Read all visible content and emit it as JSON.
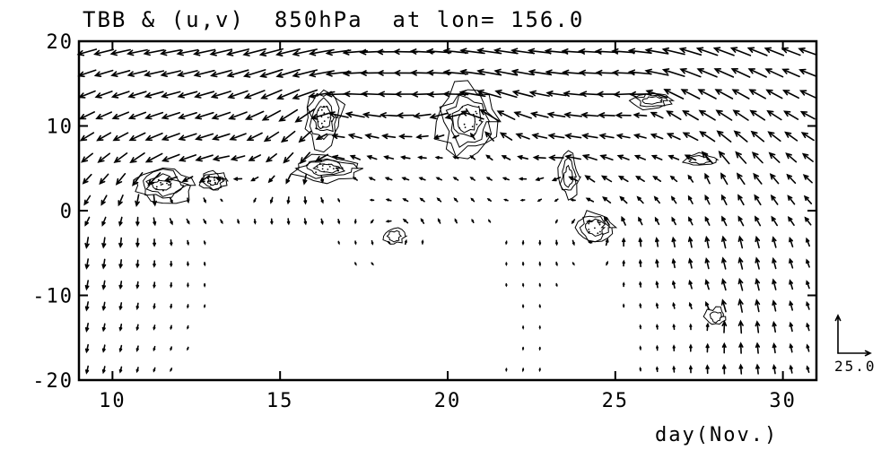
{
  "chart_data": {
    "type": "vector-field",
    "title": "TBB & (u,v)  850hPa  at lon= 156.0",
    "xlabel": "day(Nov.)",
    "ylabel": "",
    "xlim": [
      9,
      31
    ],
    "ylim": [
      -20,
      20
    ],
    "x_ticks": [
      10,
      15,
      20,
      25,
      30
    ],
    "y_ticks": [
      20,
      10,
      0,
      -10,
      -20
    ],
    "reference_vector": {
      "label": "25.0",
      "magnitude": 25.0
    },
    "grid_x_step_days": 0.5,
    "grid_y_step_deg": 2.5,
    "convective_features": [
      {
        "x": 20.6,
        "y": 10.5,
        "rx": 0.9,
        "ry": 4.5,
        "strength": 1.0
      },
      {
        "x": 16.3,
        "y": 11.0,
        "rx": 0.6,
        "ry": 3.5,
        "strength": 0.8
      },
      {
        "x": 16.4,
        "y": 5.0,
        "rx": 1.0,
        "ry": 1.5,
        "strength": 0.7
      },
      {
        "x": 11.5,
        "y": 3.0,
        "rx": 0.9,
        "ry": 2.0,
        "strength": 0.7
      },
      {
        "x": 13.0,
        "y": 3.5,
        "rx": 0.4,
        "ry": 1.2,
        "strength": 0.6
      },
      {
        "x": 23.6,
        "y": 4.0,
        "rx": 0.3,
        "ry": 2.5,
        "strength": 0.5
      },
      {
        "x": 24.4,
        "y": -2.0,
        "rx": 0.6,
        "ry": 2.0,
        "strength": 0.6
      },
      {
        "x": 26.1,
        "y": 13.0,
        "rx": 0.6,
        "ry": 1.0,
        "strength": 0.5
      },
      {
        "x": 18.4,
        "y": -3.0,
        "rx": 0.3,
        "ry": 1.0,
        "strength": 0.4
      },
      {
        "x": 28.0,
        "y": -12.5,
        "rx": 0.3,
        "ry": 1.0,
        "strength": 0.4
      },
      {
        "x": 27.5,
        "y": 6.0,
        "rx": 0.5,
        "ry": 0.7,
        "strength": 0.4
      }
    ]
  }
}
